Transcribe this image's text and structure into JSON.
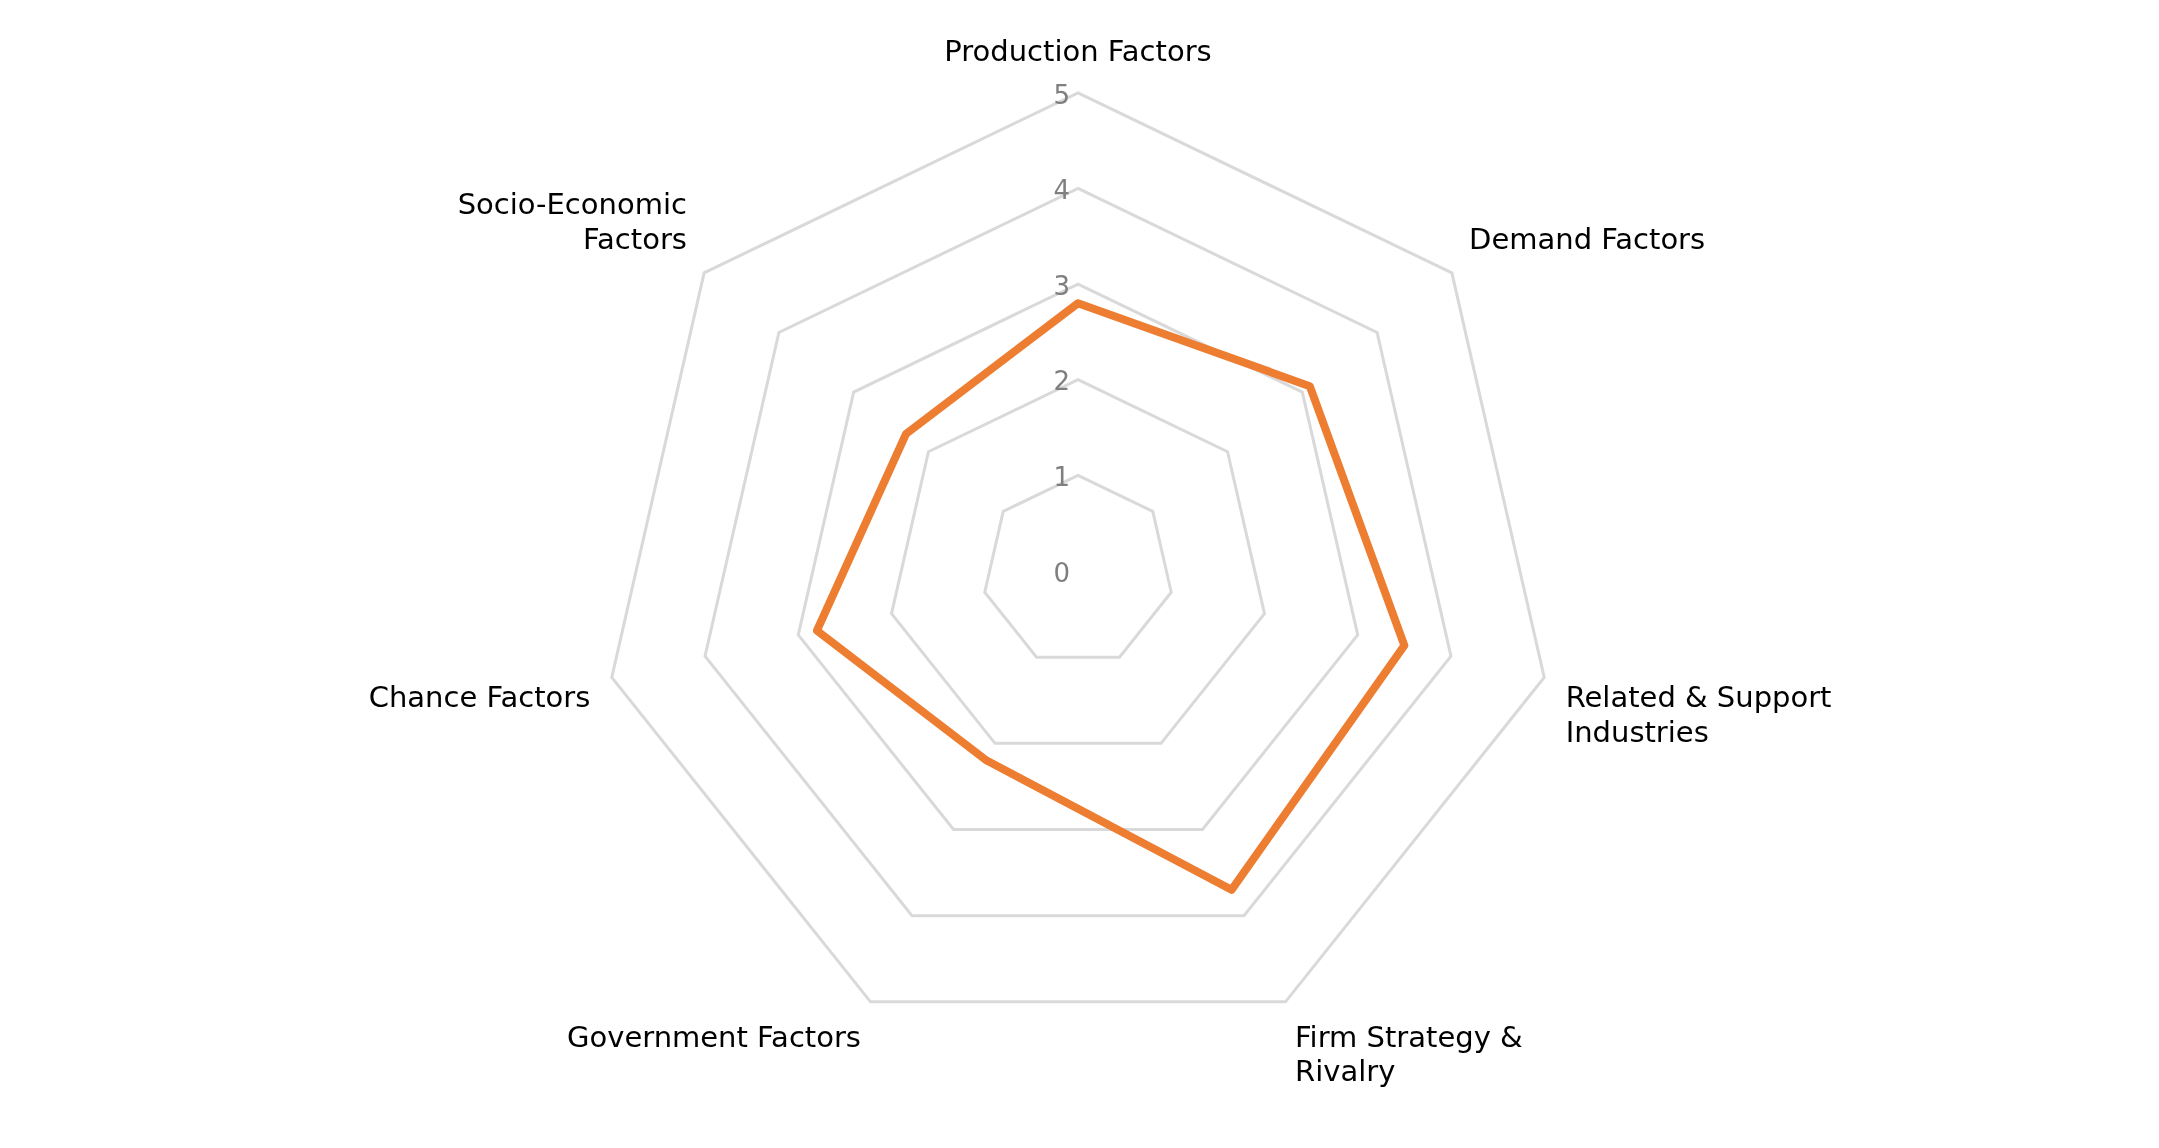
{
  "chart_data": {
    "type": "radar",
    "categories": [
      "Production Factors",
      "Demand Factors",
      "Related & Support Industries",
      "Firm Strategy & Rivalry",
      "Government Factors",
      "Chance Factors",
      "Socio-Economic Factors"
    ],
    "series": [
      {
        "color": "#ed7d31",
        "values": [
          2.8,
          3.1,
          3.5,
          3.7,
          2.2,
          2.8,
          2.3
        ]
      }
    ],
    "ylim": [
      0,
      5
    ],
    "yticks": [
      0,
      1,
      2,
      3,
      4,
      5
    ],
    "grid": true,
    "legend": false,
    "marker": "none"
  }
}
